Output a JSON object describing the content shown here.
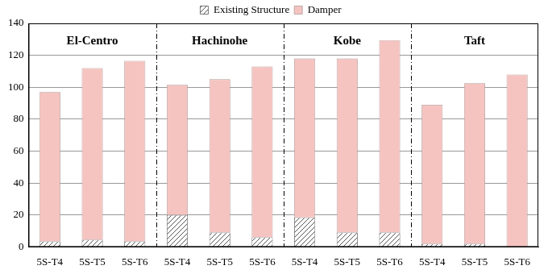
{
  "chart_data": {
    "type": "bar",
    "stacked": true,
    "grid": true,
    "legend": "top",
    "categories": [
      "5S-T4",
      "5S-T5",
      "5S-T6",
      "5S-T4",
      "5S-T5",
      "5S-T6",
      "5S-T4",
      "5S-T5",
      "5S-T6",
      "5S-T4",
      "5S-T5",
      "5S-T6"
    ],
    "annotations": [
      "El-Centro",
      "Hachinohe",
      "Kobe",
      "Taft"
    ],
    "series": [
      {
        "name": "Existing Structure",
        "color": "#555555",
        "values": [
          3.5,
          4.5,
          3.5,
          20,
          9,
          6,
          18.5,
          9,
          9,
          2,
          2,
          0
        ]
      },
      {
        "name": "Damper",
        "color": "#f5c4c1",
        "values": [
          93.5,
          107.5,
          113,
          81.5,
          96,
          107,
          99.5,
          109,
          120.5,
          87,
          100.5,
          108
        ]
      }
    ],
    "ylim": [
      0,
      140
    ],
    "yticks": [
      0,
      20,
      40,
      60,
      80,
      100,
      120,
      140
    ]
  }
}
